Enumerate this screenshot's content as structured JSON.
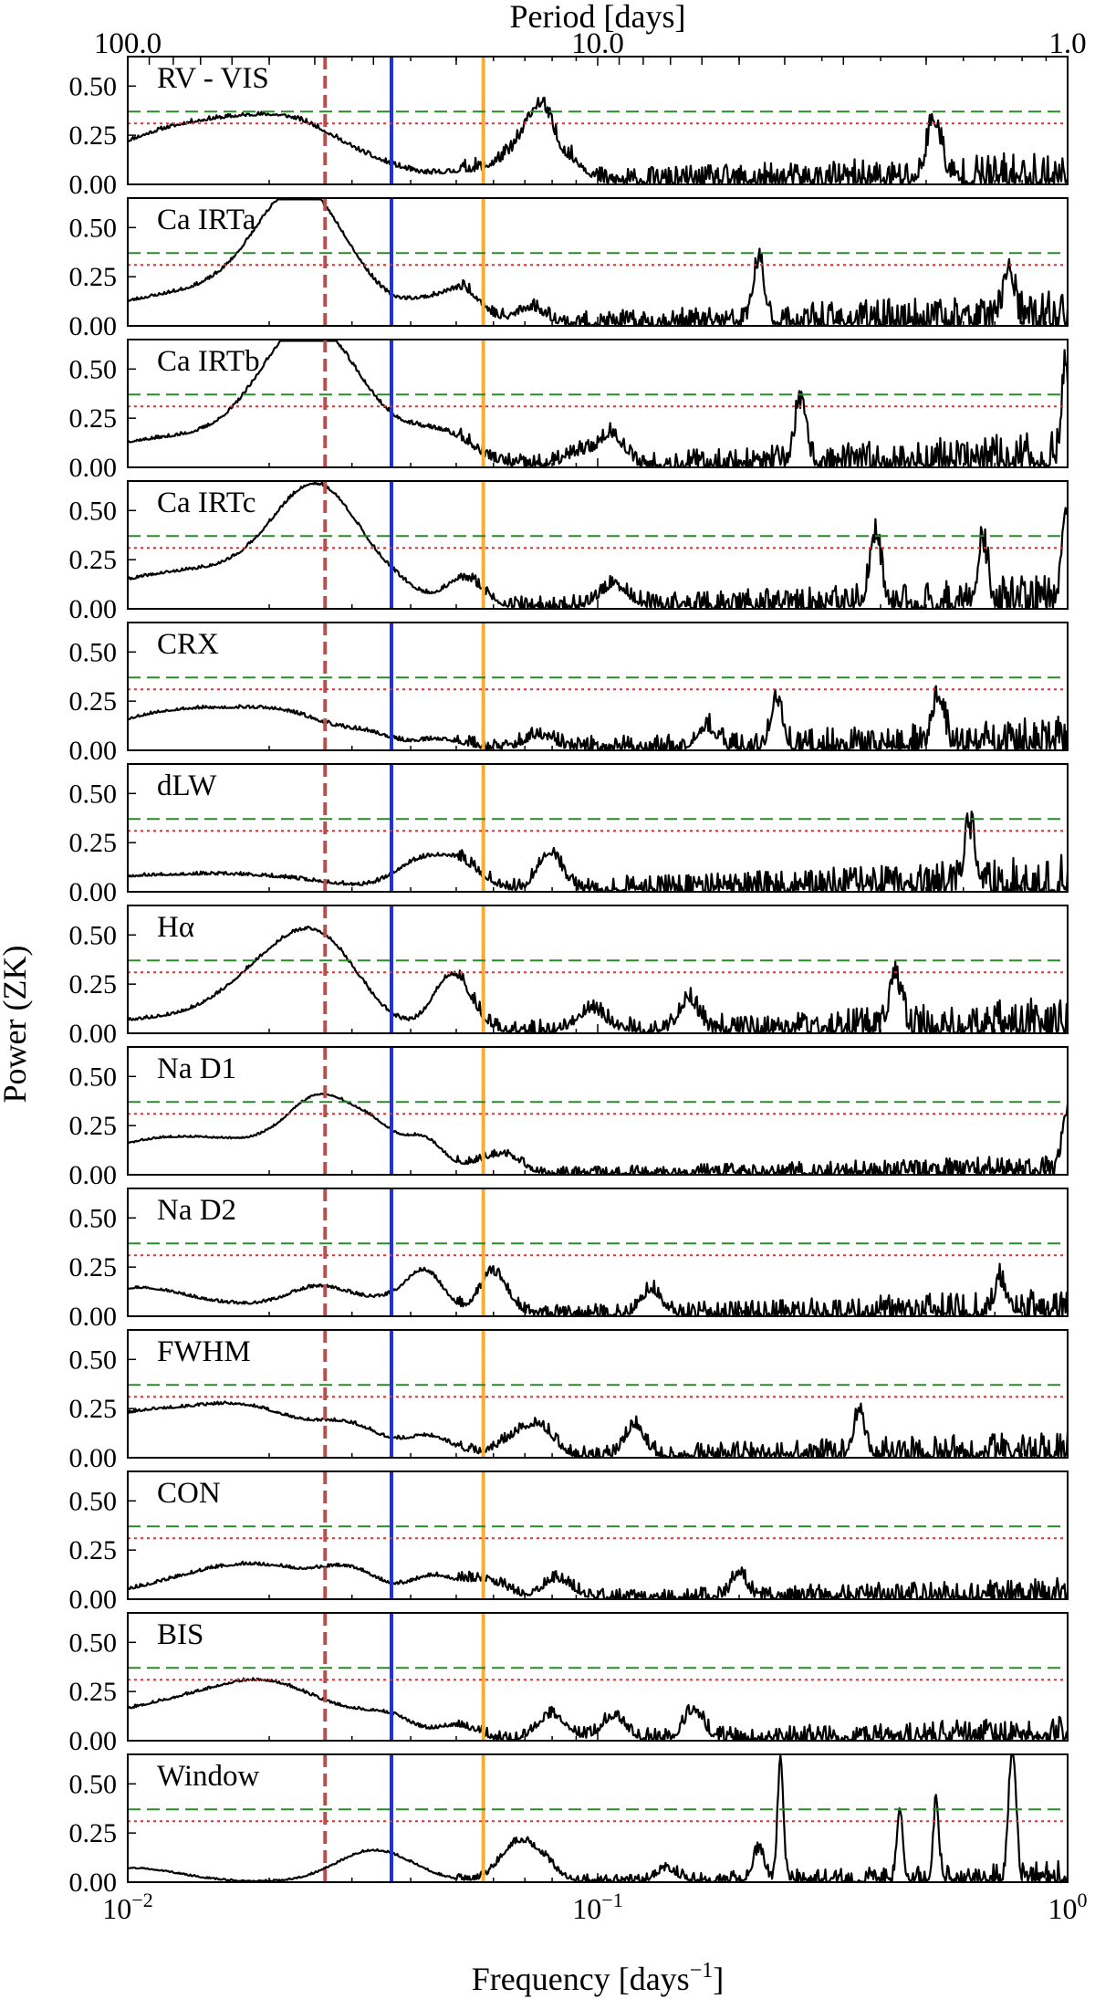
{
  "chart_data": {
    "type": "line",
    "top_axis_label": "Period [days]",
    "top_axis_ticks": [
      {
        "period": 100,
        "label": "100.0"
      },
      {
        "period": 10,
        "label": "10.0"
      },
      {
        "period": 1,
        "label": "1.0"
      }
    ],
    "xlabel": "Frequency [days",
    "xlabel_sup": "−1",
    "xlabel_tail": "]",
    "ylabel": "Power (ZK)",
    "x_scale": "log",
    "xlim": [
      0.01,
      1.0
    ],
    "ylim": [
      0,
      0.65
    ],
    "y_ticks": [
      {
        "value": 0.0,
        "label": "0.00"
      },
      {
        "value": 0.25,
        "label": "0.25"
      },
      {
        "value": 0.5,
        "label": "0.50"
      }
    ],
    "x_ticks": [
      {
        "value": 0.01,
        "label_base": "10",
        "label_exp": "−2"
      },
      {
        "value": 0.1,
        "label_base": "10",
        "label_exp": "−1"
      },
      {
        "value": 1.0,
        "label_base": "10",
        "label_exp": "0"
      }
    ],
    "vertical_lines": [
      {
        "frequency": 0.0263,
        "color": "#b5504f",
        "style": "dashed"
      },
      {
        "frequency": 0.0364,
        "color": "#1f2ee8",
        "style": "solid"
      },
      {
        "frequency": 0.0571,
        "color": "#f6ad32",
        "style": "solid"
      }
    ],
    "fap_levels": [
      {
        "power": 0.37,
        "color": "#2a8a2a",
        "style": "dashed"
      },
      {
        "power": 0.31,
        "color": "#e03030",
        "style": "dotted"
      }
    ],
    "panels": [
      {
        "name": "RV - VIS",
        "peaks": [
          [
            0.0115,
            0.19,
            0.16
          ],
          [
            0.0175,
            0.18,
            0.14
          ],
          [
            0.024,
            0.17,
            0.1
          ],
          [
            0.036,
            0.05,
            0.08
          ],
          [
            0.052,
            0.05,
            0.05
          ],
          [
            0.065,
            0.1,
            0.04
          ],
          [
            0.073,
            0.19,
            0.03
          ],
          [
            0.077,
            0.2,
            0.025
          ],
          [
            0.088,
            0.1,
            0.03
          ],
          [
            0.52,
            0.3,
            0.015
          ]
        ],
        "noise": 0.05,
        "noise_rise": 0.13,
        "seed": 11
      },
      {
        "name": "Ca IRTa",
        "peaks": [
          [
            0.0145,
            0.17,
            0.2
          ],
          [
            0.0235,
            0.6,
            0.095
          ],
          [
            0.032,
            0.03,
            0.05
          ],
          [
            0.043,
            0.1,
            0.05
          ],
          [
            0.052,
            0.15,
            0.04
          ],
          [
            0.072,
            0.08,
            0.03
          ],
          [
            0.22,
            0.3,
            0.012
          ],
          [
            0.75,
            0.28,
            0.01
          ]
        ],
        "noise": 0.04,
        "noise_rise": 0.15,
        "seed": 23
      },
      {
        "name": "Ca IRTb",
        "peaks": [
          [
            0.0135,
            0.15,
            0.22
          ],
          [
            0.0245,
            0.66,
            0.1
          ],
          [
            0.033,
            0.04,
            0.05
          ],
          [
            0.042,
            0.12,
            0.06
          ],
          [
            0.05,
            0.09,
            0.05
          ],
          [
            0.092,
            0.06,
            0.03
          ],
          [
            0.107,
            0.15,
            0.025
          ],
          [
            0.27,
            0.3,
            0.012
          ],
          [
            0.99,
            0.5,
            0.008
          ]
        ],
        "noise": 0.04,
        "noise_rise": 0.15,
        "seed": 37
      },
      {
        "name": "Ca IRTc",
        "peaks": [
          [
            0.014,
            0.19,
            0.2
          ],
          [
            0.0255,
            0.55,
            0.095
          ],
          [
            0.038,
            0.04,
            0.05
          ],
          [
            0.052,
            0.14,
            0.04
          ],
          [
            0.108,
            0.1,
            0.03
          ],
          [
            0.39,
            0.33,
            0.012
          ],
          [
            0.66,
            0.3,
            0.01
          ],
          [
            0.99,
            0.5,
            0.008
          ]
        ],
        "noise": 0.035,
        "noise_rise": 0.15,
        "seed": 41
      },
      {
        "name": "CRX",
        "peaks": [
          [
            0.0132,
            0.2,
            0.17
          ],
          [
            0.0225,
            0.11,
            0.1
          ],
          [
            0.033,
            0.05,
            0.05
          ],
          [
            0.046,
            0.05,
            0.05
          ],
          [
            0.075,
            0.06,
            0.03
          ],
          [
            0.17,
            0.1,
            0.02
          ],
          [
            0.24,
            0.24,
            0.012
          ],
          [
            0.53,
            0.25,
            0.012
          ]
        ],
        "noise": 0.04,
        "noise_rise": 0.14,
        "seed": 53
      },
      {
        "name": "dLW",
        "peaks": [
          [
            0.0105,
            0.07,
            0.2
          ],
          [
            0.02,
            0.05,
            0.15
          ],
          [
            0.041,
            0.12,
            0.05
          ],
          [
            0.05,
            0.14,
            0.05
          ],
          [
            0.079,
            0.19,
            0.025
          ],
          [
            0.62,
            0.27,
            0.012
          ]
        ],
        "noise": 0.04,
        "noise_rise": 0.15,
        "seed": 67
      },
      {
        "name": "Hα",
        "peaks": [
          [
            0.0125,
            0.07,
            0.2
          ],
          [
            0.0225,
            0.4,
            0.11
          ],
          [
            0.027,
            0.15,
            0.07
          ],
          [
            0.049,
            0.29,
            0.04
          ],
          [
            0.097,
            0.1,
            0.03
          ],
          [
            0.156,
            0.15,
            0.02
          ],
          [
            0.43,
            0.26,
            0.012
          ]
        ],
        "noise": 0.04,
        "noise_rise": 0.15,
        "seed": 79
      },
      {
        "name": "Na D1",
        "peaks": [
          [
            0.0105,
            0.07,
            0.12
          ],
          [
            0.0165,
            0.16,
            0.2
          ],
          [
            0.026,
            0.3,
            0.07
          ],
          [
            0.034,
            0.15,
            0.05
          ],
          [
            0.043,
            0.15,
            0.04
          ],
          [
            0.058,
            0.06,
            0.04
          ],
          [
            0.065,
            0.06,
            0.03
          ],
          [
            0.99,
            0.3,
            0.008
          ]
        ],
        "noise": 0.025,
        "noise_rise": 0.08,
        "seed": 83
      },
      {
        "name": "Na D2",
        "peaks": [
          [
            0.0102,
            0.12,
            0.1
          ],
          [
            0.016,
            0.05,
            0.15
          ],
          [
            0.026,
            0.13,
            0.07
          ],
          [
            0.036,
            0.06,
            0.05
          ],
          [
            0.043,
            0.21,
            0.04
          ],
          [
            0.06,
            0.21,
            0.03
          ],
          [
            0.13,
            0.12,
            0.02
          ],
          [
            0.72,
            0.15,
            0.012
          ]
        ],
        "noise": 0.035,
        "noise_rise": 0.11,
        "seed": 97
      },
      {
        "name": "FWHM",
        "peaks": [
          [
            0.0102,
            0.2,
            0.12
          ],
          [
            0.018,
            0.24,
            0.12
          ],
          [
            0.03,
            0.13,
            0.07
          ],
          [
            0.044,
            0.1,
            0.05
          ],
          [
            0.068,
            0.1,
            0.04
          ],
          [
            0.076,
            0.1,
            0.03
          ],
          [
            0.12,
            0.15,
            0.02
          ],
          [
            0.36,
            0.2,
            0.012
          ]
        ],
        "noise": 0.035,
        "noise_rise": 0.11,
        "seed": 101
      },
      {
        "name": "CON",
        "peaks": [
          [
            0.0145,
            0.06,
            0.15
          ],
          [
            0.0195,
            0.13,
            0.14
          ],
          [
            0.03,
            0.1,
            0.06
          ],
          [
            0.045,
            0.11,
            0.05
          ],
          [
            0.058,
            0.08,
            0.04
          ],
          [
            0.082,
            0.09,
            0.03
          ],
          [
            0.2,
            0.12,
            0.015
          ]
        ],
        "noise": 0.04,
        "noise_rise": 0.07,
        "seed": 113
      },
      {
        "name": "BIS",
        "peaks": [
          [
            0.012,
            0.17,
            0.17
          ],
          [
            0.0205,
            0.23,
            0.12
          ],
          [
            0.031,
            0.05,
            0.06
          ],
          [
            0.037,
            0.08,
            0.05
          ],
          [
            0.05,
            0.07,
            0.04
          ],
          [
            0.08,
            0.12,
            0.03
          ],
          [
            0.108,
            0.11,
            0.025
          ],
          [
            0.16,
            0.14,
            0.02
          ]
        ],
        "noise": 0.035,
        "noise_rise": 0.09,
        "seed": 127
      },
      {
        "name": "Window",
        "peaks": [
          [
            0.0102,
            0.07,
            0.1
          ],
          [
            0.0335,
            0.16,
            0.08
          ],
          [
            0.067,
            0.18,
            0.035
          ],
          [
            0.076,
            0.09,
            0.03
          ],
          [
            0.14,
            0.06,
            0.02
          ],
          [
            0.22,
            0.15,
            0.012
          ],
          [
            0.245,
            0.62,
            0.006
          ],
          [
            0.44,
            0.36,
            0.006
          ],
          [
            0.525,
            0.39,
            0.006
          ],
          [
            0.755,
            0.42,
            0.006
          ],
          [
            0.77,
            0.42,
            0.006
          ]
        ],
        "noise": 0.02,
        "noise_rise": 0.09,
        "seed": 131
      }
    ]
  }
}
